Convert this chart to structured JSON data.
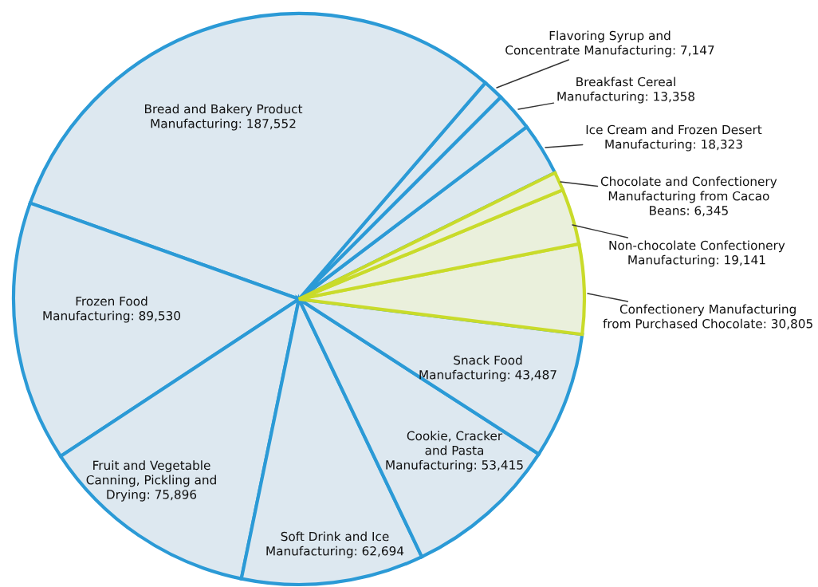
{
  "chart_data": {
    "type": "pie",
    "value_labels": [
      "30,805",
      "19,141",
      "6,345",
      "18,323",
      "13,358",
      "7,147",
      "187,552",
      "89,530",
      "75,896",
      "62,694",
      "53,415",
      "43,487"
    ],
    "categories": [
      "Confectionery Manufacturing\nfrom Purchased Chocolate",
      "Non-chocolate Confectionery\nManufacturing",
      "Chocolate and Confectionery\nManufacturing from Cacao\nBeans",
      "Ice Cream and Frozen Desert\nManufacturing",
      "Breakfast Cereal\nManufacturing",
      "Flavoring Syrup and\nConcentrate Manufacturing",
      "Bread and Bakery Product\nManufacturing",
      "Frozen Food\nManufacturing",
      "Fruit and Vegetable\nCanning, Pickling and\nDrying",
      "Soft Drink and Ice\nManufacturing",
      "Cookie, Cracker\nand Pasta\nManufacturing",
      "Snack Food\nManufacturing"
    ],
    "values": [
      30805,
      19141,
      6345,
      18323,
      13358,
      7147,
      187552,
      89530,
      75896,
      62694,
      53415,
      43487
    ],
    "colors": [
      "#eaf0dc",
      "#eaf0dc",
      "#eaf0dc",
      "#dde8f0",
      "#dde8f0",
      "#dde8f0",
      "#dde8f0",
      "#dde8f0",
      "#dde8f0",
      "#dde8f0",
      "#dde8f0",
      "#dde8f0"
    ]
  }
}
